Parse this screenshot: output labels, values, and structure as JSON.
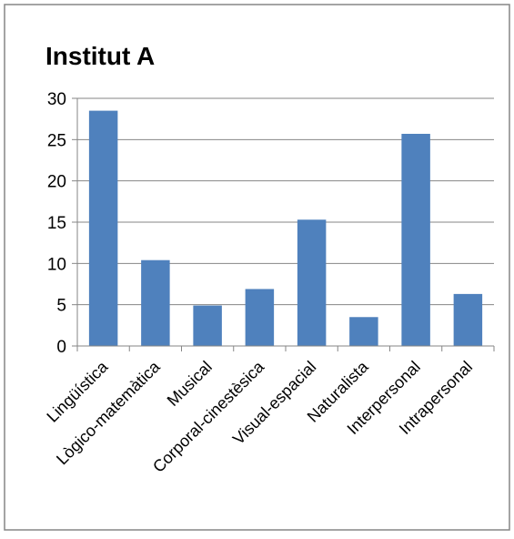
{
  "chart_data": {
    "type": "bar",
    "title": "Institut A",
    "categories": [
      "Lingüística",
      "Lògico-matemàtica",
      "Musical",
      "Corporal-cinestèsica",
      "Visual-espacial",
      "Naturalista",
      "Interpersonal",
      "Intrapersonal"
    ],
    "values": [
      28.5,
      10.4,
      4.9,
      6.9,
      15.3,
      3.5,
      25.7,
      6.3
    ],
    "ylim": [
      0,
      30
    ],
    "yticks": [
      0,
      5,
      10,
      15,
      20,
      25,
      30
    ],
    "grid": true,
    "bar_color": "#4f81bd",
    "grid_color": "#868686",
    "border_color": "#868686"
  }
}
